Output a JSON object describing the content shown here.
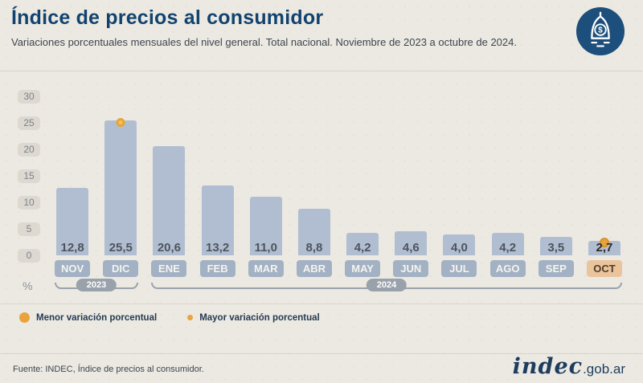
{
  "header": {
    "title": "Índice de precios al consumidor",
    "subtitle": "Variaciones porcentuales mensuales del nivel general. Total nacional. Noviembre de 2023 a octubre de 2024."
  },
  "chart_data": {
    "type": "bar",
    "title": "Índice de precios al consumidor",
    "categories": [
      "NOV",
      "DIC",
      "ENE",
      "FEB",
      "MAR",
      "ABR",
      "MAY",
      "JUN",
      "JUL",
      "AGO",
      "SEP",
      "OCT"
    ],
    "values": [
      12.8,
      25.5,
      20.6,
      13.2,
      11.0,
      8.8,
      4.2,
      4.6,
      4.0,
      4.2,
      3.5,
      2.7
    ],
    "value_labels": [
      "12,8",
      "25,5",
      "20,6",
      "13,2",
      "11,0",
      "8,8",
      "4,2",
      "4,6",
      "4,0",
      "4,2",
      "3,5",
      "2,7"
    ],
    "ylabel": "%",
    "ylim": [
      0,
      30
    ],
    "yticks": [
      0,
      5,
      10,
      15,
      20,
      25,
      30
    ],
    "grid": false,
    "legend_position": "bottom-left",
    "year_groups": [
      {
        "label": "2023",
        "from": "NOV",
        "to": "DIC"
      },
      {
        "label": "2024",
        "from": "ENE",
        "to": "OCT"
      }
    ],
    "max_month": "DIC",
    "min_month": "OCT",
    "bar_color": "#b1bed1",
    "highlight_chip_color": "#eac49d",
    "marker_orange": "#e8a33c",
    "marker_yellow": "#f6c844"
  },
  "legend": {
    "min_label": "Menor variación porcentual",
    "max_label": "Mayor variación porcentual"
  },
  "footer": {
    "source": "Fuente: INDEC, Índice de precios al consumidor.",
    "brand": "indec",
    "brand_suffix": ".gob.ar"
  }
}
